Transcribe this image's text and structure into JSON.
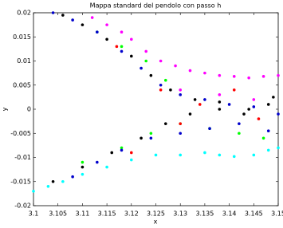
{
  "chart_data": {
    "type": "scatter",
    "title": "Mappa standard del pendolo con passo h",
    "x_label": "x",
    "y_label": "y",
    "xlim": [
      3.1,
      3.15
    ],
    "xticks": [
      3.1,
      3.105,
      3.11,
      3.115,
      3.12,
      3.125,
      3.13,
      3.135,
      3.14,
      3.145,
      3.15
    ],
    "ylim": [
      -0.02,
      0.02
    ],
    "yticks": [
      -0.02,
      -0.015,
      -0.01,
      -0.005,
      0,
      0.005,
      0.01,
      0.015,
      0.02
    ],
    "series": [
      {
        "color": "#ff00ff",
        "x": [
          3.112,
          3.115,
          3.118,
          3.12,
          3.123,
          3.126,
          3.129,
          3.132,
          3.135,
          3.138,
          3.141,
          3.144,
          3.147,
          3.15,
          3.13,
          3.138,
          3.145
        ],
        "values": [
          0.019,
          0.0175,
          0.016,
          0.0145,
          0.012,
          0.01,
          0.009,
          0.008,
          0.0075,
          0.007,
          0.0068,
          0.0065,
          0.0068,
          0.007,
          0.004,
          0.003,
          0.002
        ]
      },
      {
        "color": "#00ffff",
        "x": [
          3.1,
          3.103,
          3.106,
          3.11,
          3.115,
          3.12,
          3.125,
          3.13,
          3.135,
          3.138,
          3.141,
          3.145,
          3.148,
          3.15
        ],
        "values": [
          -0.017,
          -0.016,
          -0.015,
          -0.0135,
          -0.012,
          -0.0105,
          -0.0095,
          -0.0095,
          -0.009,
          -0.0095,
          -0.0098,
          -0.0095,
          -0.0085,
          -0.008
        ]
      },
      {
        "color": "#00ff00",
        "x": [
          3.113,
          3.118,
          3.123,
          3.127,
          3.11,
          3.118,
          3.124,
          3.13,
          3.136,
          3.142,
          3.147
        ],
        "values": [
          0.016,
          0.013,
          0.01,
          0.006,
          -0.011,
          -0.008,
          -0.005,
          -0.003,
          -0.004,
          -0.005,
          -0.006
        ]
      },
      {
        "color": "#0000cc",
        "x": [
          3.104,
          3.108,
          3.113,
          3.118,
          3.122,
          3.126,
          3.13,
          3.135,
          3.14,
          3.145,
          3.15,
          3.108,
          3.113,
          3.118,
          3.124,
          3.13,
          3.136,
          3.142,
          3.148
        ],
        "values": [
          0.02,
          0.0185,
          0.016,
          0.012,
          0.0085,
          0.005,
          0.003,
          0.002,
          0.001,
          0.0005,
          -0.001,
          -0.014,
          -0.011,
          -0.0085,
          -0.006,
          -0.005,
          -0.004,
          -0.003,
          -0.0045
        ]
      },
      {
        "color": "#000000",
        "x": [
          3.106,
          3.11,
          3.115,
          3.12,
          3.124,
          3.128,
          3.133,
          3.138,
          3.143,
          3.148,
          3.104,
          3.11,
          3.116,
          3.122,
          3.127,
          3.132,
          3.138,
          3.144,
          3.149
        ],
        "values": [
          0.0195,
          0.0175,
          0.0145,
          0.011,
          0.007,
          0.004,
          0.002,
          0,
          -0.001,
          0.001,
          -0.015,
          -0.012,
          -0.009,
          -0.006,
          -0.003,
          -0.001,
          0.0015,
          0,
          0.0025
        ]
      },
      {
        "color": "#ff0000",
        "x": [
          3.117,
          3.126,
          3.134,
          3.141,
          3.12,
          3.13,
          3.146
        ],
        "values": [
          0.013,
          0.004,
          0.001,
          0.004,
          -0.009,
          -0.003,
          -0.002
        ]
      }
    ]
  }
}
